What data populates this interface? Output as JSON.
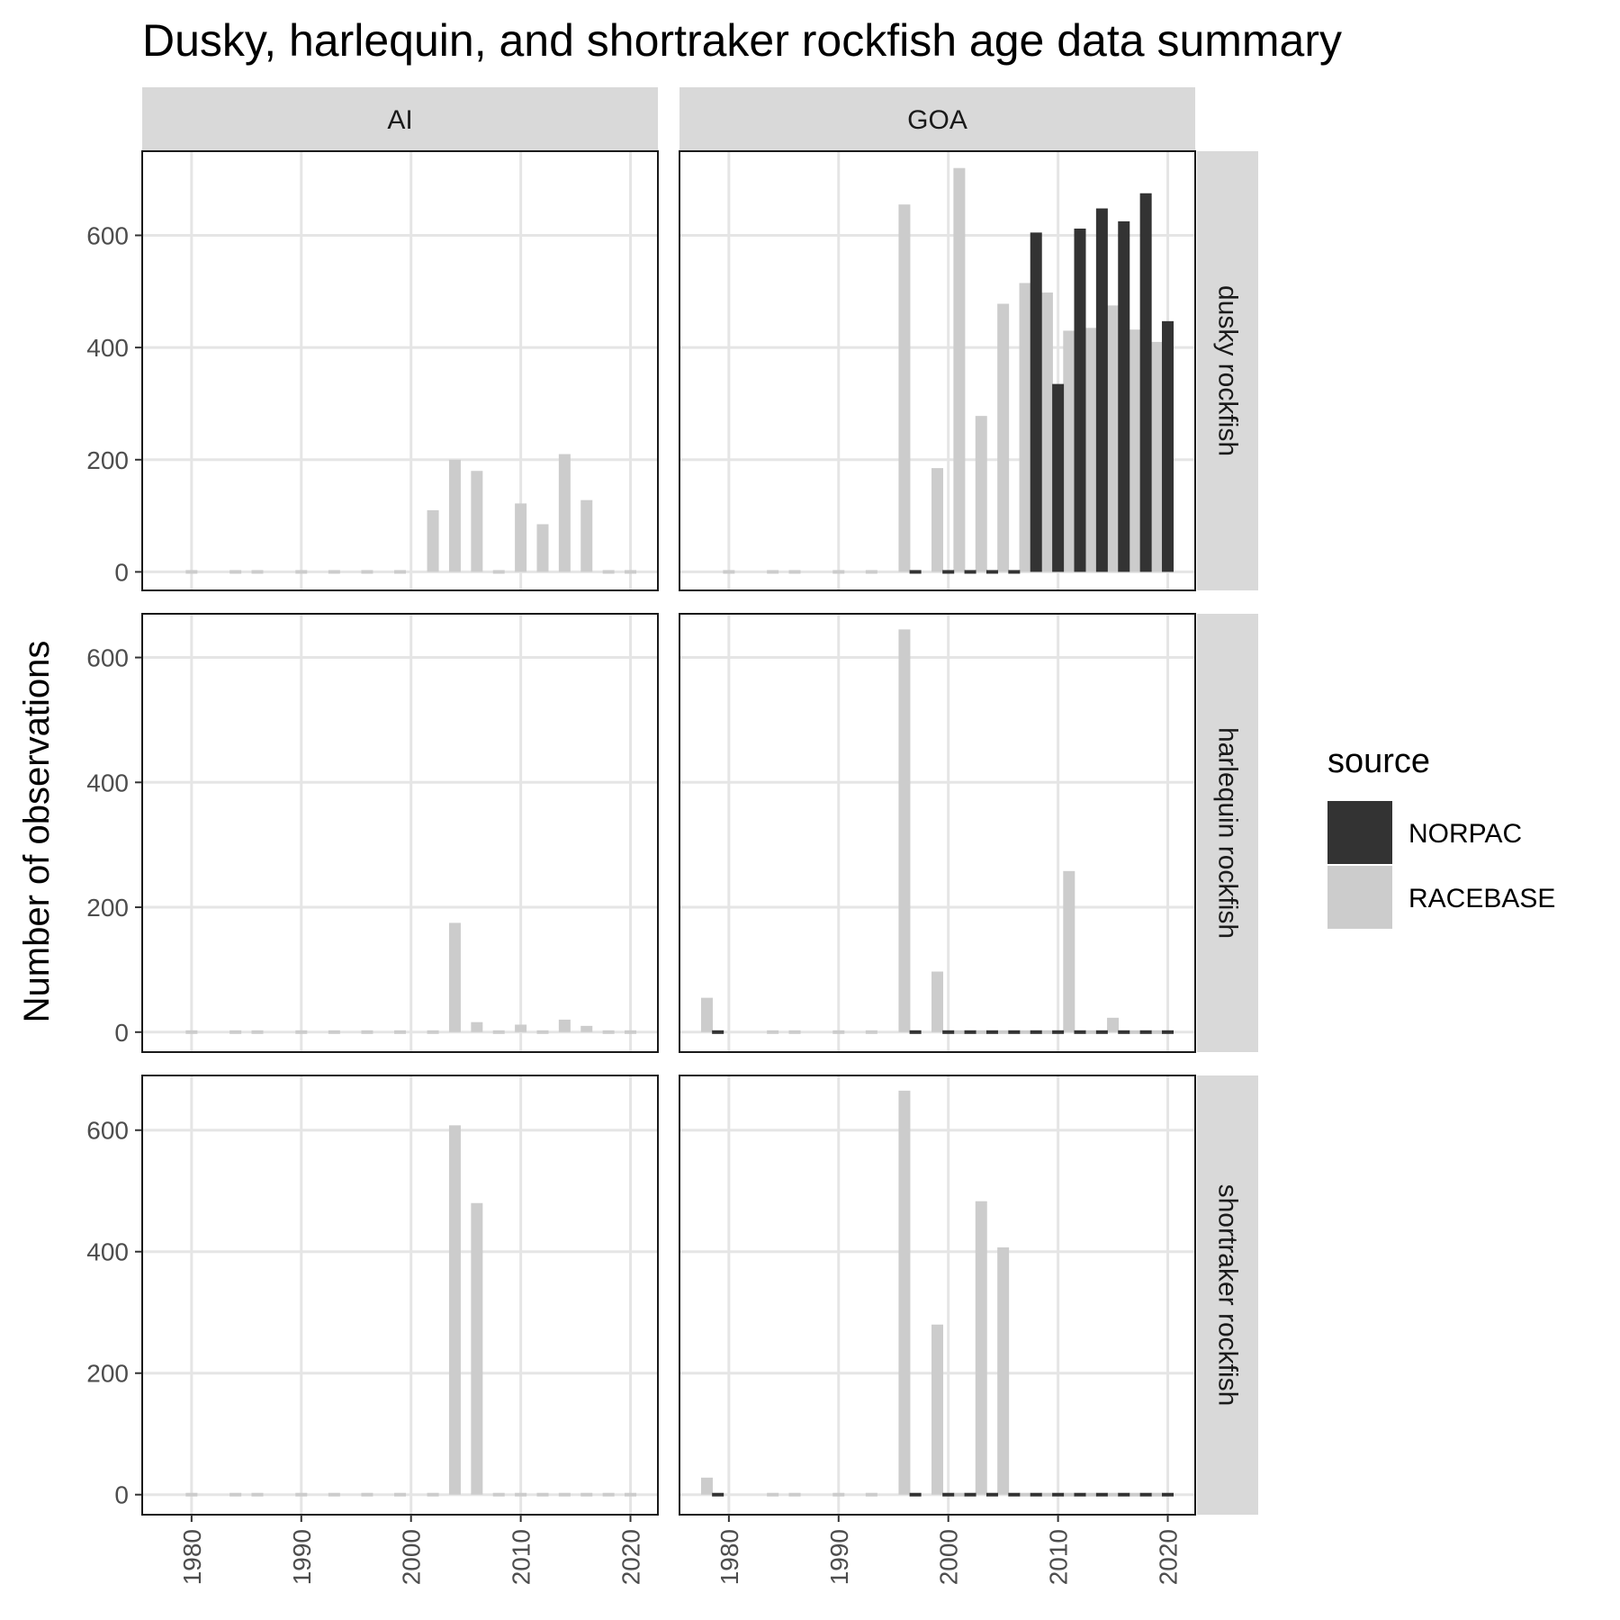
{
  "chart_data": {
    "type": "bar",
    "title": "Dusky, harlequin, and shortraker rockfish age data summary",
    "xlabel": "",
    "ylabel": "Number of observations",
    "grid": true,
    "legend": {
      "title": "source",
      "position": "right",
      "entries": [
        {
          "name": "NORPAC",
          "color": "#333333"
        },
        {
          "name": "RACEBASE",
          "color": "#cccccc"
        }
      ]
    },
    "x_ticks": [
      1980,
      1990,
      2000,
      2010,
      2020
    ],
    "xlim": [
      1975.5,
      2022.5
    ],
    "facet_columns": [
      "AI",
      "GOA"
    ],
    "facet_rows": [
      "dusky rockfish",
      "harlequin rockfish",
      "shortraker rockfish"
    ],
    "panels": [
      {
        "column": "AI",
        "row": "dusky rockfish",
        "ylim": [
          -33,
          750
        ],
        "y_ticks": [
          0,
          200,
          400,
          600
        ],
        "series": [
          {
            "name": "RACEBASE",
            "points": [
              [
                1980,
                0
              ],
              [
                1984,
                0
              ],
              [
                1986,
                0
              ],
              [
                1990,
                0
              ],
              [
                1993,
                0
              ],
              [
                1996,
                0
              ],
              [
                1999,
                0
              ],
              [
                2002,
                110
              ],
              [
                2004,
                200
              ],
              [
                2006,
                180
              ],
              [
                2008,
                0
              ],
              [
                2010,
                122
              ],
              [
                2012,
                85
              ],
              [
                2014,
                210
              ],
              [
                2016,
                128
              ],
              [
                2018,
                0
              ],
              [
                2020,
                0
              ]
            ]
          }
        ]
      },
      {
        "column": "GOA",
        "row": "dusky rockfish",
        "ylim": [
          -33,
          750
        ],
        "y_ticks": [
          0,
          200,
          400,
          600
        ],
        "series": [
          {
            "name": "RACEBASE",
            "points": [
              [
                1980,
                0
              ],
              [
                1984,
                0
              ],
              [
                1986,
                0
              ],
              [
                1990,
                0
              ],
              [
                1993,
                0
              ],
              [
                1996,
                655
              ],
              [
                1999,
                185
              ],
              [
                2001,
                720
              ],
              [
                2003,
                278
              ],
              [
                2005,
                478
              ],
              [
                2007,
                515
              ],
              [
                2009,
                498
              ],
              [
                2011,
                430
              ],
              [
                2013,
                435
              ],
              [
                2015,
                475
              ],
              [
                2017,
                432
              ],
              [
                2019,
                410
              ]
            ]
          },
          {
            "name": "NORPAC",
            "points": [
              [
                1997,
                0
              ],
              [
                2000,
                0
              ],
              [
                2002,
                0
              ],
              [
                2004,
                0
              ],
              [
                2006,
                0
              ],
              [
                2008,
                605
              ],
              [
                2010,
                335
              ],
              [
                2012,
                612
              ],
              [
                2014,
                648
              ],
              [
                2016,
                625
              ],
              [
                2018,
                675
              ],
              [
                2020,
                447
              ]
            ]
          }
        ]
      },
      {
        "column": "AI",
        "row": "harlequin rockfish",
        "ylim": [
          -32,
          670
        ],
        "y_ticks": [
          0,
          200,
          400,
          600
        ],
        "series": [
          {
            "name": "RACEBASE",
            "points": [
              [
                1980,
                0
              ],
              [
                1984,
                0
              ],
              [
                1986,
                0
              ],
              [
                1990,
                0
              ],
              [
                1993,
                0
              ],
              [
                1996,
                0
              ],
              [
                1999,
                0
              ],
              [
                2002,
                0
              ],
              [
                2004,
                175
              ],
              [
                2006,
                16
              ],
              [
                2008,
                0
              ],
              [
                2010,
                12
              ],
              [
                2012,
                0
              ],
              [
                2014,
                20
              ],
              [
                2016,
                10
              ],
              [
                2018,
                0
              ],
              [
                2020,
                0
              ]
            ]
          }
        ]
      },
      {
        "column": "GOA",
        "row": "harlequin rockfish",
        "ylim": [
          -32,
          670
        ],
        "y_ticks": [
          0,
          200,
          400,
          600
        ],
        "series": [
          {
            "name": "RACEBASE",
            "points": [
              [
                1978,
                55
              ],
              [
                1984,
                0
              ],
              [
                1986,
                0
              ],
              [
                1990,
                0
              ],
              [
                1993,
                0
              ],
              [
                1996,
                645
              ],
              [
                1999,
                97
              ],
              [
                2001,
                0
              ],
              [
                2003,
                0
              ],
              [
                2005,
                0
              ],
              [
                2007,
                0
              ],
              [
                2009,
                0
              ],
              [
                2011,
                258
              ],
              [
                2013,
                0
              ],
              [
                2015,
                23
              ],
              [
                2017,
                0
              ],
              [
                2019,
                0
              ]
            ]
          },
          {
            "name": "NORPAC",
            "points": [
              [
                1979,
                0
              ],
              [
                1997,
                0
              ],
              [
                2000,
                0
              ],
              [
                2002,
                0
              ],
              [
                2004,
                0
              ],
              [
                2006,
                0
              ],
              [
                2008,
                0
              ],
              [
                2010,
                0
              ],
              [
                2012,
                0
              ],
              [
                2014,
                0
              ],
              [
                2016,
                0
              ],
              [
                2018,
                0
              ],
              [
                2020,
                0
              ]
            ]
          }
        ]
      },
      {
        "column": "AI",
        "row": "shortraker rockfish",
        "ylim": [
          -33,
          690
        ],
        "y_ticks": [
          0,
          200,
          400,
          600
        ],
        "series": [
          {
            "name": "RACEBASE",
            "points": [
              [
                1980,
                0
              ],
              [
                1984,
                0
              ],
              [
                1986,
                0
              ],
              [
                1990,
                0
              ],
              [
                1993,
                0
              ],
              [
                1996,
                0
              ],
              [
                1999,
                0
              ],
              [
                2002,
                0
              ],
              [
                2004,
                608
              ],
              [
                2006,
                480
              ],
              [
                2008,
                0
              ],
              [
                2010,
                0
              ],
              [
                2012,
                0
              ],
              [
                2014,
                0
              ],
              [
                2016,
                0
              ],
              [
                2018,
                0
              ],
              [
                2020,
                0
              ]
            ]
          }
        ]
      },
      {
        "column": "GOA",
        "row": "shortraker rockfish",
        "ylim": [
          -33,
          690
        ],
        "y_ticks": [
          0,
          200,
          400,
          600
        ],
        "series": [
          {
            "name": "RACEBASE",
            "points": [
              [
                1978,
                28
              ],
              [
                1984,
                0
              ],
              [
                1986,
                0
              ],
              [
                1990,
                0
              ],
              [
                1993,
                0
              ],
              [
                1996,
                665
              ],
              [
                1999,
                280
              ],
              [
                2001,
                0
              ],
              [
                2003,
                483
              ],
              [
                2005,
                407
              ],
              [
                2007,
                0
              ],
              [
                2009,
                0
              ],
              [
                2011,
                0
              ],
              [
                2013,
                0
              ],
              [
                2015,
                0
              ],
              [
                2017,
                0
              ],
              [
                2019,
                0
              ]
            ]
          },
          {
            "name": "NORPAC",
            "points": [
              [
                1979,
                0
              ],
              [
                1997,
                0
              ],
              [
                2000,
                0
              ],
              [
                2002,
                0
              ],
              [
                2004,
                0
              ],
              [
                2006,
                0
              ],
              [
                2008,
                0
              ],
              [
                2010,
                0
              ],
              [
                2012,
                0
              ],
              [
                2014,
                0
              ],
              [
                2016,
                0
              ],
              [
                2018,
                0
              ],
              [
                2020,
                0
              ]
            ]
          }
        ]
      }
    ]
  }
}
